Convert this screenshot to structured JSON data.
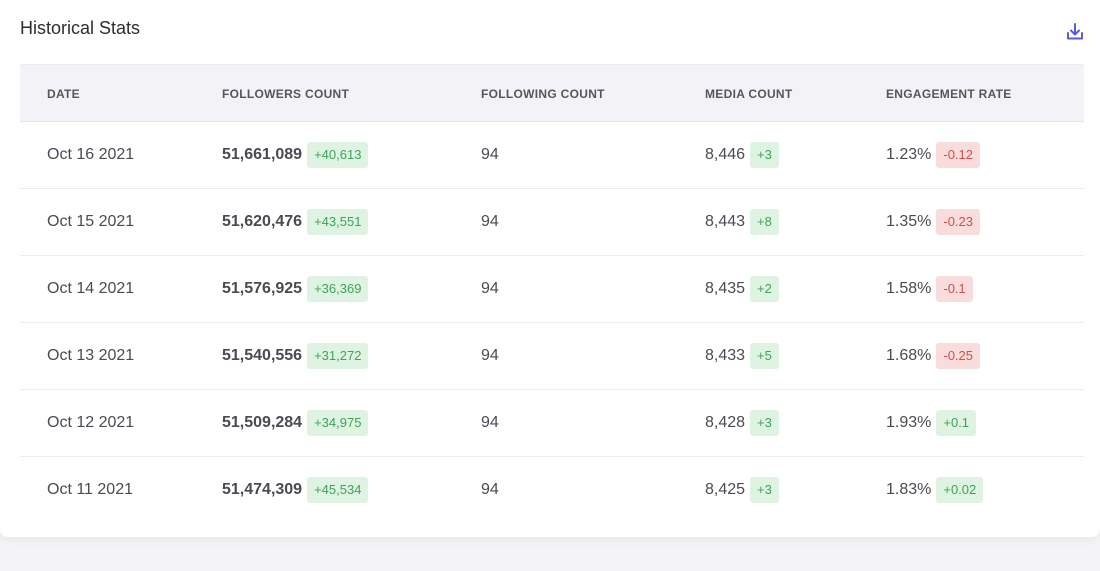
{
  "title": "Historical Stats",
  "download_icon": "download-icon",
  "colors": {
    "positive_bg": "#dff3e2",
    "positive_text": "#3fa35a",
    "negative_bg": "#f9dddd",
    "negative_text": "#d24d4d",
    "accent": "#5b5bd6"
  },
  "table": {
    "headers": {
      "date": "DATE",
      "followers": "FOLLOWERS COUNT",
      "following": "FOLLOWING COUNT",
      "media": "MEDIA COUNT",
      "engagement": "ENGAGEMENT RATE"
    },
    "rows": [
      {
        "date": "Oct 16 2021",
        "followers": "51,661,089",
        "followers_change": "+40,613",
        "following": "94",
        "media": "8,446",
        "media_change": "+3",
        "engagement": "1.23%",
        "engagement_change": "-0.12"
      },
      {
        "date": "Oct 15 2021",
        "followers": "51,620,476",
        "followers_change": "+43,551",
        "following": "94",
        "media": "8,443",
        "media_change": "+8",
        "engagement": "1.35%",
        "engagement_change": "-0.23"
      },
      {
        "date": "Oct 14 2021",
        "followers": "51,576,925",
        "followers_change": "+36,369",
        "following": "94",
        "media": "8,435",
        "media_change": "+2",
        "engagement": "1.58%",
        "engagement_change": "-0.1"
      },
      {
        "date": "Oct 13 2021",
        "followers": "51,540,556",
        "followers_change": "+31,272",
        "following": "94",
        "media": "8,433",
        "media_change": "+5",
        "engagement": "1.68%",
        "engagement_change": "-0.25"
      },
      {
        "date": "Oct 12 2021",
        "followers": "51,509,284",
        "followers_change": "+34,975",
        "following": "94",
        "media": "8,428",
        "media_change": "+3",
        "engagement": "1.93%",
        "engagement_change": "+0.1"
      },
      {
        "date": "Oct 11 2021",
        "followers": "51,474,309",
        "followers_change": "+45,534",
        "following": "94",
        "media": "8,425",
        "media_change": "+3",
        "engagement": "1.83%",
        "engagement_change": "+0.02"
      }
    ]
  }
}
